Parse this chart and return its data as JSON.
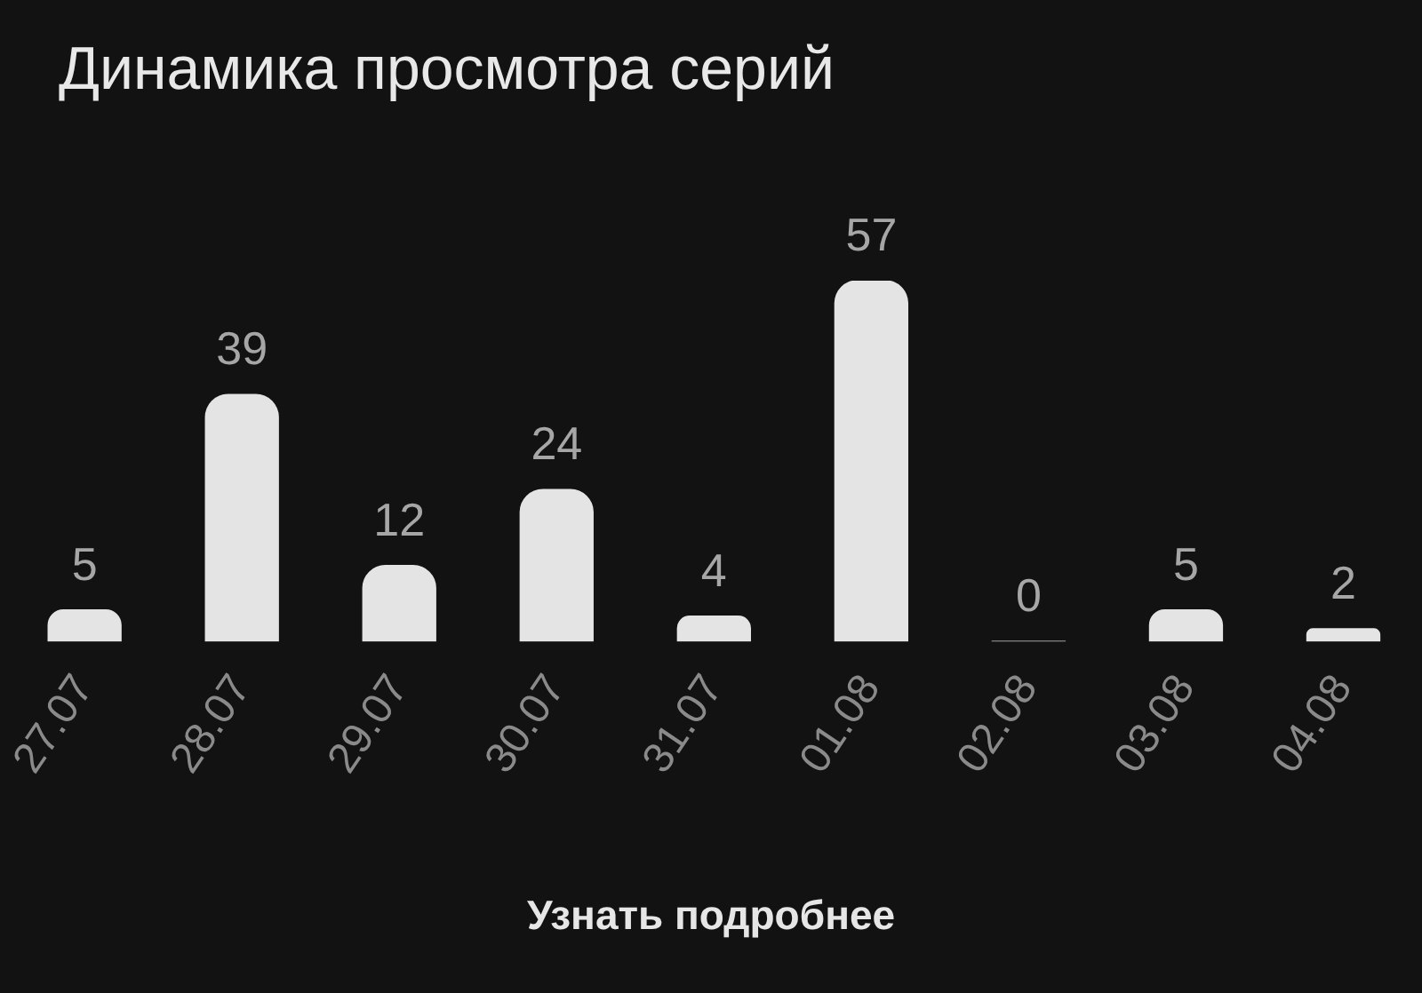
{
  "chart_data": {
    "type": "bar",
    "title": "Динамика просмотра серий",
    "categories": [
      "27.07",
      "28.07",
      "29.07",
      "30.07",
      "31.07",
      "01.08",
      "02.08",
      "03.08",
      "04.08"
    ],
    "values": [
      5,
      39,
      12,
      24,
      4,
      57,
      0,
      5,
      2
    ],
    "color": "#e4e4e4",
    "data_labels": true,
    "annotations": [
      "Узнать подробнее"
    ]
  }
}
